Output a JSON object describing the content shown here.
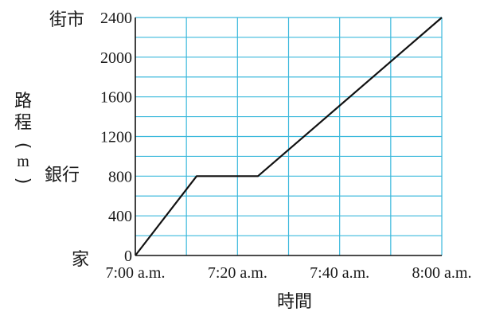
{
  "chart_data": {
    "type": "line",
    "xlabel": "時間",
    "ylabel": "路程(m)",
    "ylabel_chars": [
      "路",
      "程",
      "(",
      "m",
      ")"
    ],
    "x_ticks": [
      "7:00 a.m.",
      "7:20 a.m.",
      "7:40 a.m.",
      "8:00 a.m."
    ],
    "x_minutes": [
      0,
      20,
      40,
      60
    ],
    "y_ticks": [
      0,
      400,
      800,
      1200,
      1600,
      2000,
      2400
    ],
    "xlim_minutes": [
      0,
      60
    ],
    "ylim": [
      0,
      2400
    ],
    "grid": true,
    "place_labels": {
      "home": "家",
      "bank": "銀行",
      "market": "街市"
    },
    "series": [
      {
        "points": [
          {
            "x": "7:00 a.m.",
            "y": 0
          },
          {
            "x": "7:12 a.m.",
            "y": 800
          },
          {
            "x": "7:24 a.m.",
            "y": 800
          },
          {
            "x": "7:60 a.m.",
            "y": 2400
          }
        ]
      }
    ],
    "series_minutes": [
      0,
      12,
      24,
      60
    ],
    "series_values": [
      0,
      800,
      800,
      2400
    ],
    "colors": {
      "grid": "#3cb9dc",
      "line": "#111111",
      "axis": "#111111"
    }
  }
}
